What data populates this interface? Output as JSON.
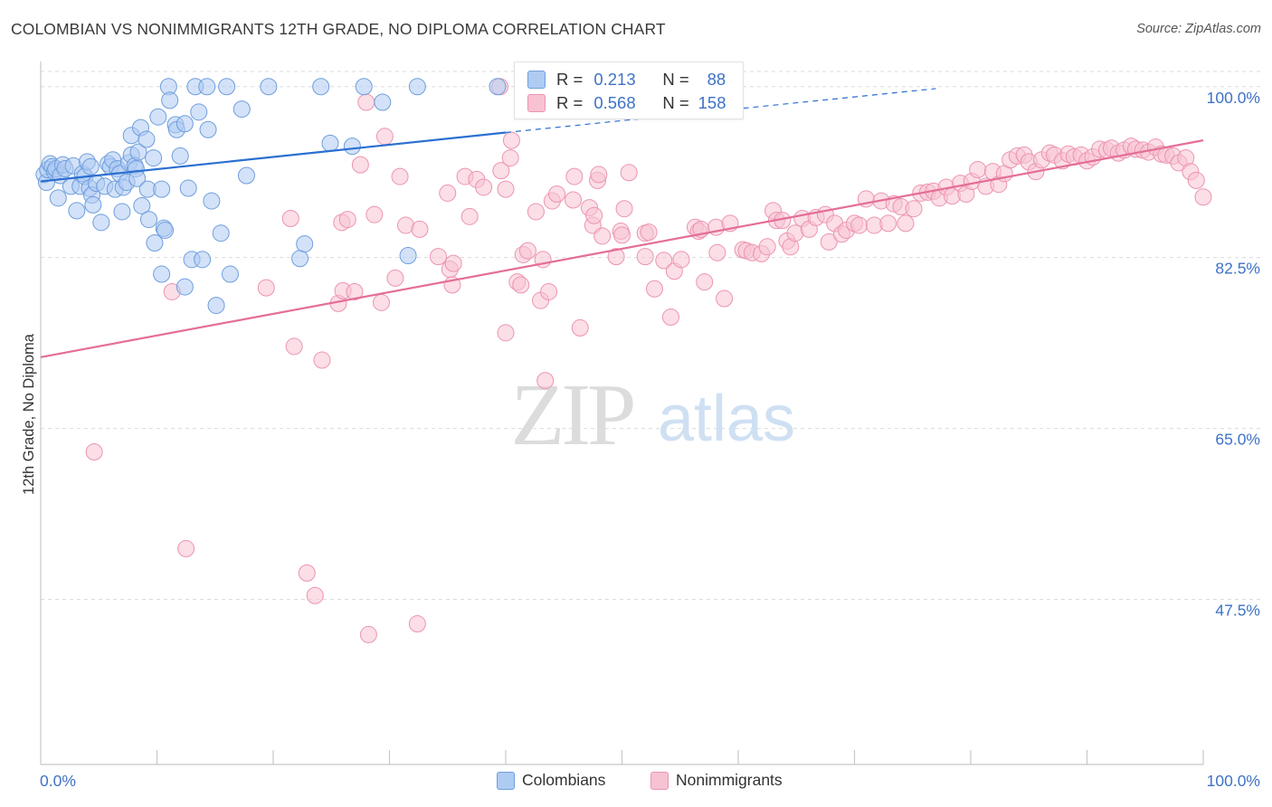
{
  "header": {
    "title": "COLOMBIAN VS NONIMMIGRANTS 12TH GRADE, NO DIPLOMA CORRELATION CHART",
    "source": "Source: ZipAtlas.com"
  },
  "watermark": {
    "zip": "ZIP",
    "atlas": "atlas"
  },
  "stats": {
    "r_label": "R =",
    "n_label": "N =",
    "colombians": {
      "r": "0.213",
      "n": "88"
    },
    "nonimmigrants": {
      "r": "0.568",
      "n": "158"
    }
  },
  "legend": {
    "colombians": "Colombians",
    "nonimmigrants": "Nonimmigrants"
  },
  "colors": {
    "blue_fill": "#aecbf2",
    "blue_stroke": "#6f9edd",
    "blue_line": "#2b6fd1",
    "pink_fill": "#f7c2d2",
    "pink_stroke": "#ec94b0",
    "pink_line": "#e46e97",
    "tick_text": "#3f72c6",
    "grid": "#dcdcdc"
  },
  "chart_data": {
    "type": "scatter",
    "title": "COLOMBIAN VS NONIMMIGRANTS 12TH GRADE, NO DIPLOMA CORRELATION CHART",
    "xlabel": "",
    "ylabel": "12th Grade, No Diploma",
    "xlim": [
      0,
      100
    ],
    "ylim": [
      30.6,
      102.2
    ],
    "y_ticks": [
      {
        "value": 100.0,
        "label": "100.0%"
      },
      {
        "value": 82.5,
        "label": "82.5%"
      },
      {
        "value": 65.0,
        "label": "65.0%"
      },
      {
        "value": 47.5,
        "label": "47.5%"
      }
    ],
    "x_tick_labels": [
      {
        "value": 0,
        "label": "0.0%"
      },
      {
        "value": 100,
        "label": "100.0%"
      }
    ],
    "x_minor_ticks": [
      10,
      20,
      30,
      40,
      50,
      60,
      70,
      80,
      90,
      100
    ],
    "grid": true,
    "legend_position": "bottom",
    "series": [
      {
        "name": "Colombians",
        "color": "#aecbf2",
        "trend": {
          "x": [
            0,
            40
          ],
          "y": [
            90.3,
            95.3
          ],
          "dashed_to": [
            77,
            99.8
          ]
        },
        "points": [
          [
            0.3,
            91.0
          ],
          [
            0.5,
            90.2
          ],
          [
            0.6,
            91.5
          ],
          [
            0.8,
            92.1
          ],
          [
            1.0,
            91.8
          ],
          [
            1.2,
            91.3
          ],
          [
            1.3,
            91.6
          ],
          [
            1.5,
            88.6
          ],
          [
            1.7,
            90.9
          ],
          [
            1.9,
            92.0
          ],
          [
            2.1,
            91.6
          ],
          [
            2.6,
            89.8
          ],
          [
            2.8,
            91.9
          ],
          [
            3.1,
            87.3
          ],
          [
            3.4,
            89.8
          ],
          [
            3.6,
            91.1
          ],
          [
            3.8,
            90.8
          ],
          [
            4.0,
            92.3
          ],
          [
            4.2,
            89.6
          ],
          [
            4.3,
            91.8
          ],
          [
            4.4,
            88.9
          ],
          [
            4.5,
            87.9
          ],
          [
            4.8,
            90.1
          ],
          [
            5.2,
            86.1
          ],
          [
            5.5,
            89.8
          ],
          [
            5.8,
            92.1
          ],
          [
            6.0,
            91.8
          ],
          [
            6.2,
            92.5
          ],
          [
            6.4,
            89.5
          ],
          [
            6.6,
            91.6
          ],
          [
            6.8,
            91.1
          ],
          [
            7.0,
            87.2
          ],
          [
            7.1,
            89.7
          ],
          [
            7.4,
            90.2
          ],
          [
            7.6,
            92.2
          ],
          [
            7.8,
            93.0
          ],
          [
            7.8,
            95.0
          ],
          [
            8.1,
            91.9
          ],
          [
            8.2,
            91.6
          ],
          [
            8.3,
            90.6
          ],
          [
            8.4,
            93.3
          ],
          [
            8.6,
            95.8
          ],
          [
            8.7,
            87.8
          ],
          [
            9.1,
            94.6
          ],
          [
            9.2,
            89.5
          ],
          [
            9.3,
            86.4
          ],
          [
            9.7,
            92.7
          ],
          [
            9.8,
            84.0
          ],
          [
            10.1,
            96.9
          ],
          [
            10.4,
            80.8
          ],
          [
            10.4,
            89.5
          ],
          [
            10.6,
            85.5
          ],
          [
            10.7,
            85.3
          ],
          [
            11.0,
            100.0
          ],
          [
            11.1,
            98.6
          ],
          [
            11.6,
            96.1
          ],
          [
            11.7,
            95.6
          ],
          [
            12.0,
            92.9
          ],
          [
            12.4,
            96.2
          ],
          [
            12.4,
            79.5
          ],
          [
            12.7,
            89.6
          ],
          [
            13.0,
            82.3
          ],
          [
            13.3,
            100.0
          ],
          [
            13.6,
            97.4
          ],
          [
            13.9,
            82.3
          ],
          [
            14.3,
            100.0
          ],
          [
            14.4,
            95.6
          ],
          [
            14.7,
            88.3
          ],
          [
            15.1,
            77.6
          ],
          [
            15.5,
            85.0
          ],
          [
            16.0,
            100.0
          ],
          [
            16.3,
            80.8
          ],
          [
            17.3,
            97.7
          ],
          [
            17.7,
            90.9
          ],
          [
            19.6,
            100.0
          ],
          [
            22.3,
            82.4
          ],
          [
            22.7,
            83.9
          ],
          [
            24.1,
            100.0
          ],
          [
            24.9,
            94.2
          ],
          [
            26.8,
            93.9
          ],
          [
            27.8,
            100.0
          ],
          [
            29.4,
            98.4
          ],
          [
            31.6,
            82.7
          ],
          [
            32.4,
            100.0
          ],
          [
            39.3,
            100.0
          ]
        ]
      },
      {
        "name": "Nonimmigrants",
        "color": "#f7c2d2",
        "trend": {
          "x": [
            0,
            100
          ],
          "y": [
            72.3,
            94.5
          ]
        },
        "points": [
          [
            4.6,
            62.6
          ],
          [
            11.3,
            79.0
          ],
          [
            12.5,
            52.7
          ],
          [
            19.4,
            79.4
          ],
          [
            21.5,
            86.5
          ],
          [
            21.8,
            73.4
          ],
          [
            22.9,
            50.2
          ],
          [
            23.6,
            47.9
          ],
          [
            24.2,
            72.0
          ],
          [
            25.6,
            77.8
          ],
          [
            25.9,
            86.1
          ],
          [
            26.0,
            79.1
          ],
          [
            26.4,
            86.4
          ],
          [
            27.0,
            79.0
          ],
          [
            27.5,
            92.0
          ],
          [
            28.0,
            98.4
          ],
          [
            28.2,
            43.9
          ],
          [
            28.7,
            86.9
          ],
          [
            29.3,
            77.9
          ],
          [
            29.6,
            94.9
          ],
          [
            30.5,
            80.4
          ],
          [
            30.9,
            90.8
          ],
          [
            31.4,
            85.8
          ],
          [
            32.4,
            45.0
          ],
          [
            32.6,
            85.4
          ],
          [
            34.2,
            82.6
          ],
          [
            35.0,
            89.1
          ],
          [
            35.2,
            81.3
          ],
          [
            35.4,
            79.7
          ],
          [
            35.5,
            81.9
          ],
          [
            36.5,
            90.8
          ],
          [
            36.9,
            86.7
          ],
          [
            37.5,
            90.5
          ],
          [
            38.1,
            89.7
          ],
          [
            39.5,
            100.0
          ],
          [
            39.6,
            91.4
          ],
          [
            40.0,
            89.5
          ],
          [
            40.0,
            74.8
          ],
          [
            40.4,
            92.7
          ],
          [
            40.5,
            94.5
          ],
          [
            41.0,
            80.0
          ],
          [
            41.3,
            79.7
          ],
          [
            41.5,
            82.8
          ],
          [
            41.9,
            83.2
          ],
          [
            42.6,
            87.2
          ],
          [
            43.0,
            78.1
          ],
          [
            43.2,
            82.3
          ],
          [
            43.7,
            79.0
          ],
          [
            43.4,
            69.9
          ],
          [
            44.0,
            88.3
          ],
          [
            44.4,
            89.0
          ],
          [
            45.8,
            88.4
          ],
          [
            45.9,
            90.8
          ],
          [
            46.4,
            75.3
          ],
          [
            47.2,
            87.6
          ],
          [
            47.5,
            85.8
          ],
          [
            47.6,
            86.8
          ],
          [
            47.9,
            90.4
          ],
          [
            48.0,
            91.0
          ],
          [
            48.3,
            84.7
          ],
          [
            49.5,
            82.6
          ],
          [
            49.9,
            85.2
          ],
          [
            50.0,
            84.8
          ],
          [
            50.2,
            87.5
          ],
          [
            50.6,
            91.2
          ],
          [
            52.0,
            82.6
          ],
          [
            52.0,
            85.0
          ],
          [
            52.3,
            85.1
          ],
          [
            52.8,
            79.3
          ],
          [
            53.6,
            82.2
          ],
          [
            54.2,
            76.4
          ],
          [
            54.5,
            81.1
          ],
          [
            55.1,
            82.3
          ],
          [
            56.3,
            85.6
          ],
          [
            56.6,
            85.2
          ],
          [
            56.8,
            85.4
          ],
          [
            57.1,
            80.0
          ],
          [
            58.1,
            85.6
          ],
          [
            58.2,
            83.0
          ],
          [
            58.8,
            78.3
          ],
          [
            59.3,
            86.0
          ],
          [
            60.4,
            83.3
          ],
          [
            60.7,
            83.2
          ],
          [
            61.2,
            83.0
          ],
          [
            62.0,
            82.9
          ],
          [
            62.5,
            83.6
          ],
          [
            63.0,
            87.3
          ],
          [
            63.3,
            86.3
          ],
          [
            63.8,
            86.3
          ],
          [
            64.2,
            84.2
          ],
          [
            64.5,
            83.6
          ],
          [
            64.9,
            85.0
          ],
          [
            65.5,
            86.5
          ],
          [
            66.1,
            85.4
          ],
          [
            66.7,
            86.6
          ],
          [
            67.5,
            86.9
          ],
          [
            67.8,
            84.1
          ],
          [
            68.3,
            86.0
          ],
          [
            68.9,
            84.9
          ],
          [
            69.3,
            85.3
          ],
          [
            70.0,
            86.0
          ],
          [
            70.4,
            85.8
          ],
          [
            71.0,
            88.5
          ],
          [
            71.7,
            85.8
          ],
          [
            72.3,
            88.3
          ],
          [
            72.9,
            86.0
          ],
          [
            73.4,
            88.0
          ],
          [
            74.0,
            87.7
          ],
          [
            74.4,
            86.0
          ],
          [
            75.1,
            87.5
          ],
          [
            75.7,
            89.1
          ],
          [
            76.3,
            89.2
          ],
          [
            76.8,
            89.3
          ],
          [
            77.3,
            88.6
          ],
          [
            77.9,
            89.7
          ],
          [
            78.4,
            88.8
          ],
          [
            79.1,
            90.1
          ],
          [
            79.6,
            89.0
          ],
          [
            80.1,
            90.3
          ],
          [
            80.6,
            91.5
          ],
          [
            81.3,
            89.8
          ],
          [
            81.9,
            91.3
          ],
          [
            82.4,
            90.0
          ],
          [
            82.9,
            91.1
          ],
          [
            83.4,
            92.5
          ],
          [
            84.0,
            92.9
          ],
          [
            84.6,
            93.0
          ],
          [
            85.0,
            92.3
          ],
          [
            85.6,
            91.3
          ],
          [
            86.1,
            92.5
          ],
          [
            86.8,
            93.2
          ],
          [
            87.2,
            93.0
          ],
          [
            87.9,
            92.4
          ],
          [
            88.4,
            93.1
          ],
          [
            88.9,
            92.8
          ],
          [
            89.5,
            93.0
          ],
          [
            90.0,
            92.4
          ],
          [
            90.5,
            92.8
          ],
          [
            91.1,
            93.6
          ],
          [
            91.7,
            93.5
          ],
          [
            92.1,
            93.7
          ],
          [
            92.7,
            93.2
          ],
          [
            93.2,
            93.5
          ],
          [
            93.8,
            93.9
          ],
          [
            94.2,
            93.6
          ],
          [
            94.8,
            93.5
          ],
          [
            95.3,
            93.3
          ],
          [
            95.9,
            93.8
          ],
          [
            96.4,
            93.1
          ],
          [
            96.8,
            93.0
          ],
          [
            97.4,
            92.9
          ],
          [
            97.9,
            92.2
          ],
          [
            98.5,
            92.7
          ],
          [
            98.9,
            91.3
          ],
          [
            99.4,
            90.4
          ],
          [
            100.0,
            88.7
          ]
        ]
      }
    ]
  }
}
